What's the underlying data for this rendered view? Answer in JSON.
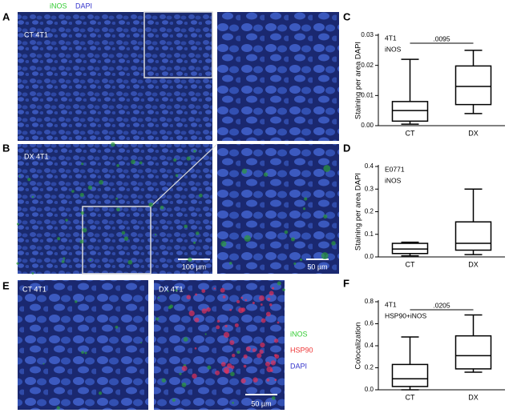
{
  "legend_top": {
    "inos": "iNOS",
    "dapi": "DAPI"
  },
  "panels": {
    "A": {
      "letter": "A",
      "label": "CT 4T1"
    },
    "B": {
      "letter": "B",
      "label": "DX 4T1",
      "scale_bar_left": "100 µm",
      "scale_bar_right": "50 µm"
    },
    "E": {
      "letter": "E",
      "label_left": "CT 4T1",
      "label_right": "DX 4T1",
      "legend": [
        "iNOS",
        "HSP90",
        "DAPI"
      ],
      "scale_bar": "50 µm"
    }
  },
  "chart_data": [
    {
      "panel": "C",
      "type": "box",
      "ylabel": "Staining per area  DAPI",
      "annotations": [
        "4T1",
        "iNOS"
      ],
      "significance": ".0095",
      "categories": [
        "CT",
        "DX"
      ],
      "color": "#000000",
      "boxes": [
        {
          "min": 0.0005,
          "q1": 0.0015,
          "median": 0.005,
          "q3": 0.008,
          "max": 0.022
        },
        {
          "min": 0.004,
          "q1": 0.007,
          "median": 0.013,
          "q3": 0.0198,
          "max": 0.025
        }
      ],
      "ylim": [
        0,
        0.03
      ],
      "yticks": [
        {
          "value": 0,
          "label": "0.00"
        },
        0.01,
        0.02,
        0.03
      ]
    },
    {
      "panel": "D",
      "type": "box",
      "ylabel": "Staining per area  DAPI",
      "annotations": [
        "E0771",
        "iNOS"
      ],
      "categories": [
        "CT",
        "DX"
      ],
      "color": "#000000",
      "boxes": [
        {
          "min": 0.005,
          "q1": 0.015,
          "median": 0.035,
          "q3": 0.06,
          "max": 0.065
        },
        {
          "min": 0.01,
          "q1": 0.03,
          "median": 0.06,
          "q3": 0.155,
          "max": 0.3
        }
      ],
      "ylim": [
        0,
        0.4
      ],
      "yticks": [
        {
          "value": 0,
          "label": "0.0"
        },
        0.1,
        0.2,
        0.3,
        0.4
      ]
    },
    {
      "panel": "F",
      "type": "box",
      "ylabel": "Colocalization",
      "annotations": [
        "4T1",
        "HSP90+iNOS"
      ],
      "significance": ".0205",
      "categories": [
        "CT",
        "DX"
      ],
      "color": "#000000",
      "boxes": [
        {
          "min": 0,
          "q1": 0.03,
          "median": 0.1,
          "q3": 0.23,
          "max": 0.48
        },
        {
          "min": 0.16,
          "q1": 0.19,
          "median": 0.31,
          "q3": 0.49,
          "max": 0.68
        }
      ],
      "ylim": [
        0,
        0.8
      ],
      "yticks": [
        {
          "value": 0,
          "label": "0.0"
        },
        0.2,
        0.4,
        0.6,
        0.8
      ]
    }
  ]
}
